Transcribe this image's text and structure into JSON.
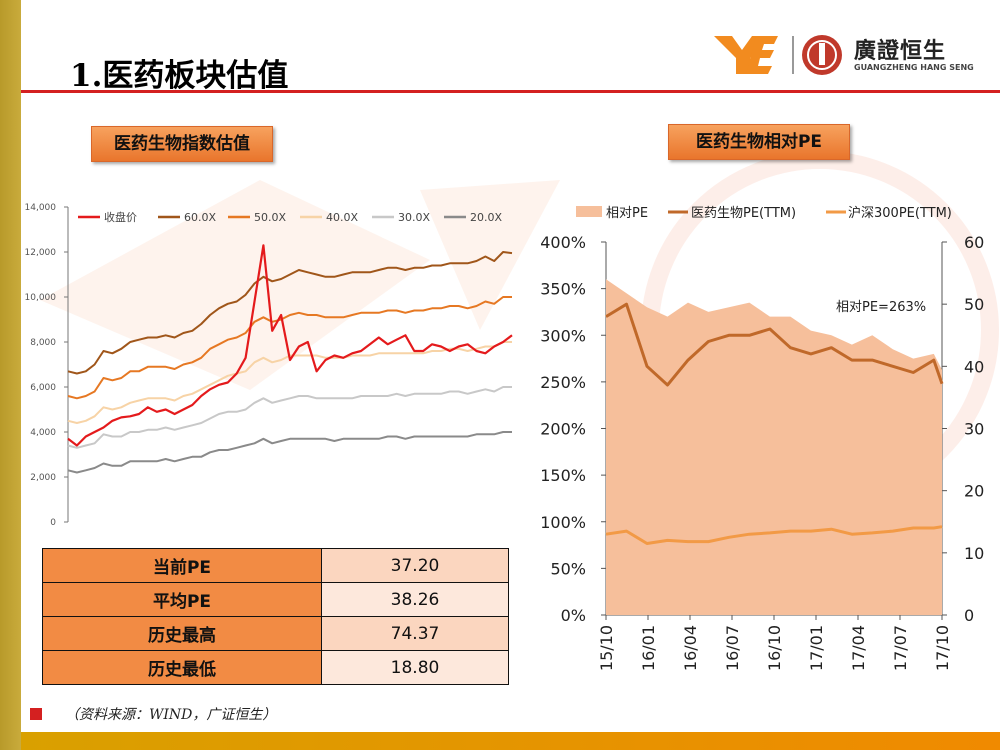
{
  "header": {
    "title": "1.医药板块估值"
  },
  "brand": {
    "name_cn": "廣證恒生",
    "name_en": "GUANGZHENG HANG SENG",
    "logo_text": "YE"
  },
  "colors": {
    "accent_red": "#d42020",
    "gold": "#c9ab3c",
    "orange": "#f28b44"
  },
  "panels": {
    "left_title": "医药生物指数估值",
    "right_title": "医药生物相对PE"
  },
  "chart_data": [
    {
      "type": "line",
      "title": "医药生物指数估值",
      "ylim": [
        0,
        14000
      ],
      "yticks": [
        0,
        2000,
        4000,
        6000,
        8000,
        10000,
        12000,
        14000
      ],
      "ytick_labels": [
        "0",
        "2,000",
        "4,000",
        "6,000",
        "8,000",
        "10,000",
        "12,000",
        "14,000"
      ],
      "x": [
        0,
        2,
        4,
        6,
        8,
        10,
        12,
        14,
        16,
        18,
        20,
        22,
        24,
        26,
        28,
        30,
        32,
        34,
        36,
        38,
        40,
        42,
        44,
        46,
        48,
        50,
        52,
        54,
        56,
        58,
        60,
        62,
        64,
        66,
        68,
        70,
        72,
        74,
        76,
        78,
        80,
        82,
        84,
        86,
        88,
        90,
        92,
        94,
        96,
        98,
        100
      ],
      "series": [
        {
          "name": "收盘价",
          "color": "#e41a1c",
          "width": 2.2,
          "values": [
            3700,
            3400,
            3800,
            4000,
            4200,
            4500,
            4650,
            4700,
            4800,
            5100,
            4900,
            5000,
            4800,
            5000,
            5200,
            5600,
            5900,
            6100,
            6200,
            6600,
            7300,
            9800,
            12300,
            8500,
            9200,
            7200,
            7800,
            8000,
            6700,
            7200,
            7400,
            7300,
            7500,
            7600,
            7900,
            8200,
            7900,
            8100,
            8300,
            7600,
            7600,
            7900,
            7800,
            7600,
            7800,
            7900,
            7600,
            7500,
            7800,
            8000,
            8300
          ]
        },
        {
          "name": "60.0X",
          "color": "#a0561a",
          "width": 2,
          "values": [
            6700,
            6600,
            6700,
            7000,
            7600,
            7500,
            7700,
            8000,
            8100,
            8200,
            8200,
            8300,
            8200,
            8400,
            8500,
            8800,
            9200,
            9500,
            9700,
            9800,
            10100,
            10600,
            10900,
            10700,
            10800,
            11000,
            11200,
            11100,
            11000,
            10900,
            10900,
            11000,
            11100,
            11100,
            11100,
            11200,
            11300,
            11300,
            11200,
            11300,
            11300,
            11400,
            11400,
            11500,
            11500,
            11500,
            11600,
            11800,
            11600,
            12000,
            11950
          ]
        },
        {
          "name": "50.0X",
          "color": "#e67823",
          "width": 2,
          "values": [
            5600,
            5500,
            5600,
            5800,
            6400,
            6300,
            6400,
            6700,
            6700,
            6900,
            6900,
            6900,
            6800,
            7000,
            7100,
            7300,
            7700,
            7900,
            8100,
            8200,
            8400,
            8900,
            9100,
            8900,
            9000,
            9200,
            9300,
            9200,
            9200,
            9100,
            9100,
            9100,
            9200,
            9300,
            9300,
            9300,
            9400,
            9400,
            9300,
            9400,
            9400,
            9500,
            9500,
            9600,
            9600,
            9500,
            9600,
            9800,
            9700,
            10000,
            10000
          ]
        },
        {
          "name": "40.0X",
          "color": "#f7d3a6",
          "width": 2,
          "values": [
            4500,
            4400,
            4500,
            4700,
            5100,
            5000,
            5100,
            5300,
            5400,
            5500,
            5500,
            5500,
            5400,
            5600,
            5700,
            5900,
            6100,
            6300,
            6500,
            6600,
            6700,
            7100,
            7300,
            7100,
            7200,
            7400,
            7400,
            7400,
            7400,
            7300,
            7300,
            7300,
            7400,
            7400,
            7400,
            7500,
            7500,
            7500,
            7500,
            7500,
            7500,
            7600,
            7600,
            7700,
            7700,
            7600,
            7700,
            7800,
            7800,
            8000,
            8000
          ]
        },
        {
          "name": "30.0X",
          "color": "#c8c8c8",
          "width": 2,
          "values": [
            3400,
            3300,
            3400,
            3500,
            3900,
            3800,
            3800,
            4000,
            4000,
            4100,
            4100,
            4200,
            4100,
            4200,
            4300,
            4400,
            4600,
            4800,
            4900,
            4900,
            5000,
            5300,
            5500,
            5300,
            5400,
            5500,
            5600,
            5600,
            5500,
            5500,
            5500,
            5500,
            5500,
            5600,
            5600,
            5600,
            5600,
            5700,
            5600,
            5700,
            5700,
            5700,
            5700,
            5800,
            5800,
            5700,
            5800,
            5900,
            5800,
            6000,
            6000
          ]
        },
        {
          "name": "20.0X",
          "color": "#8a8a8a",
          "width": 2,
          "values": [
            2300,
            2200,
            2300,
            2400,
            2600,
            2500,
            2500,
            2700,
            2700,
            2700,
            2700,
            2800,
            2700,
            2800,
            2900,
            2900,
            3100,
            3200,
            3200,
            3300,
            3400,
            3500,
            3700,
            3500,
            3600,
            3700,
            3700,
            3700,
            3700,
            3700,
            3600,
            3700,
            3700,
            3700,
            3700,
            3700,
            3800,
            3800,
            3700,
            3800,
            3800,
            3800,
            3800,
            3800,
            3800,
            3800,
            3900,
            3900,
            3900,
            4000,
            4000
          ]
        }
      ]
    },
    {
      "type": "area",
      "title": "医药生物相对PE",
      "categories": [
        "15/10",
        "16/01",
        "16/04",
        "16/07",
        "16/10",
        "17/01",
        "17/04",
        "17/07",
        "17/10"
      ],
      "x": [
        0,
        0.5,
        1,
        1.5,
        2,
        2.5,
        3,
        3.5,
        4,
        4.5,
        5,
        5.5,
        6,
        6.5,
        7,
        7.5,
        8,
        8.2
      ],
      "ylim_left": [
        0,
        400
      ],
      "yticks_left": [
        "0%",
        "50%",
        "100%",
        "150%",
        "200%",
        "250%",
        "300%",
        "350%",
        "400%"
      ],
      "ylim_right": [
        0,
        60
      ],
      "yticks_right": [
        "0",
        "10",
        "20",
        "30",
        "40",
        "50",
        "60"
      ],
      "annotation": "相对PE=263%",
      "series": [
        {
          "name": "相对PE",
          "kind": "area",
          "axis": "left",
          "color": "#f6bf9b",
          "values": [
            360,
            345,
            330,
            320,
            335,
            325,
            330,
            335,
            320,
            320,
            305,
            300,
            290,
            300,
            285,
            275,
            280,
            263
          ]
        },
        {
          "name": "医药生物PE(TTM)",
          "kind": "line",
          "axis": "right",
          "color": "#c0692a",
          "values": [
            48,
            50,
            40,
            37,
            41,
            44,
            45,
            45,
            46,
            43,
            42,
            43,
            41,
            41,
            40,
            39,
            41,
            37.2
          ]
        },
        {
          "name": "沪深300PE(TTM)",
          "kind": "line",
          "axis": "right",
          "color": "#f29a46",
          "values": [
            13,
            13.5,
            11.5,
            12,
            11.8,
            11.8,
            12.5,
            13,
            13.2,
            13.5,
            13.5,
            13.8,
            13,
            13.2,
            13.5,
            14,
            14,
            14.2
          ]
        }
      ]
    }
  ],
  "stats_table": [
    {
      "label": "当前PE",
      "value": "37.20"
    },
    {
      "label": "平均PE",
      "value": "38.26"
    },
    {
      "label": "历史最高",
      "value": "74.37"
    },
    {
      "label": "历史最低",
      "value": "18.80"
    }
  ],
  "footer": {
    "source": "（资料来源：WIND，广证恒生）"
  }
}
